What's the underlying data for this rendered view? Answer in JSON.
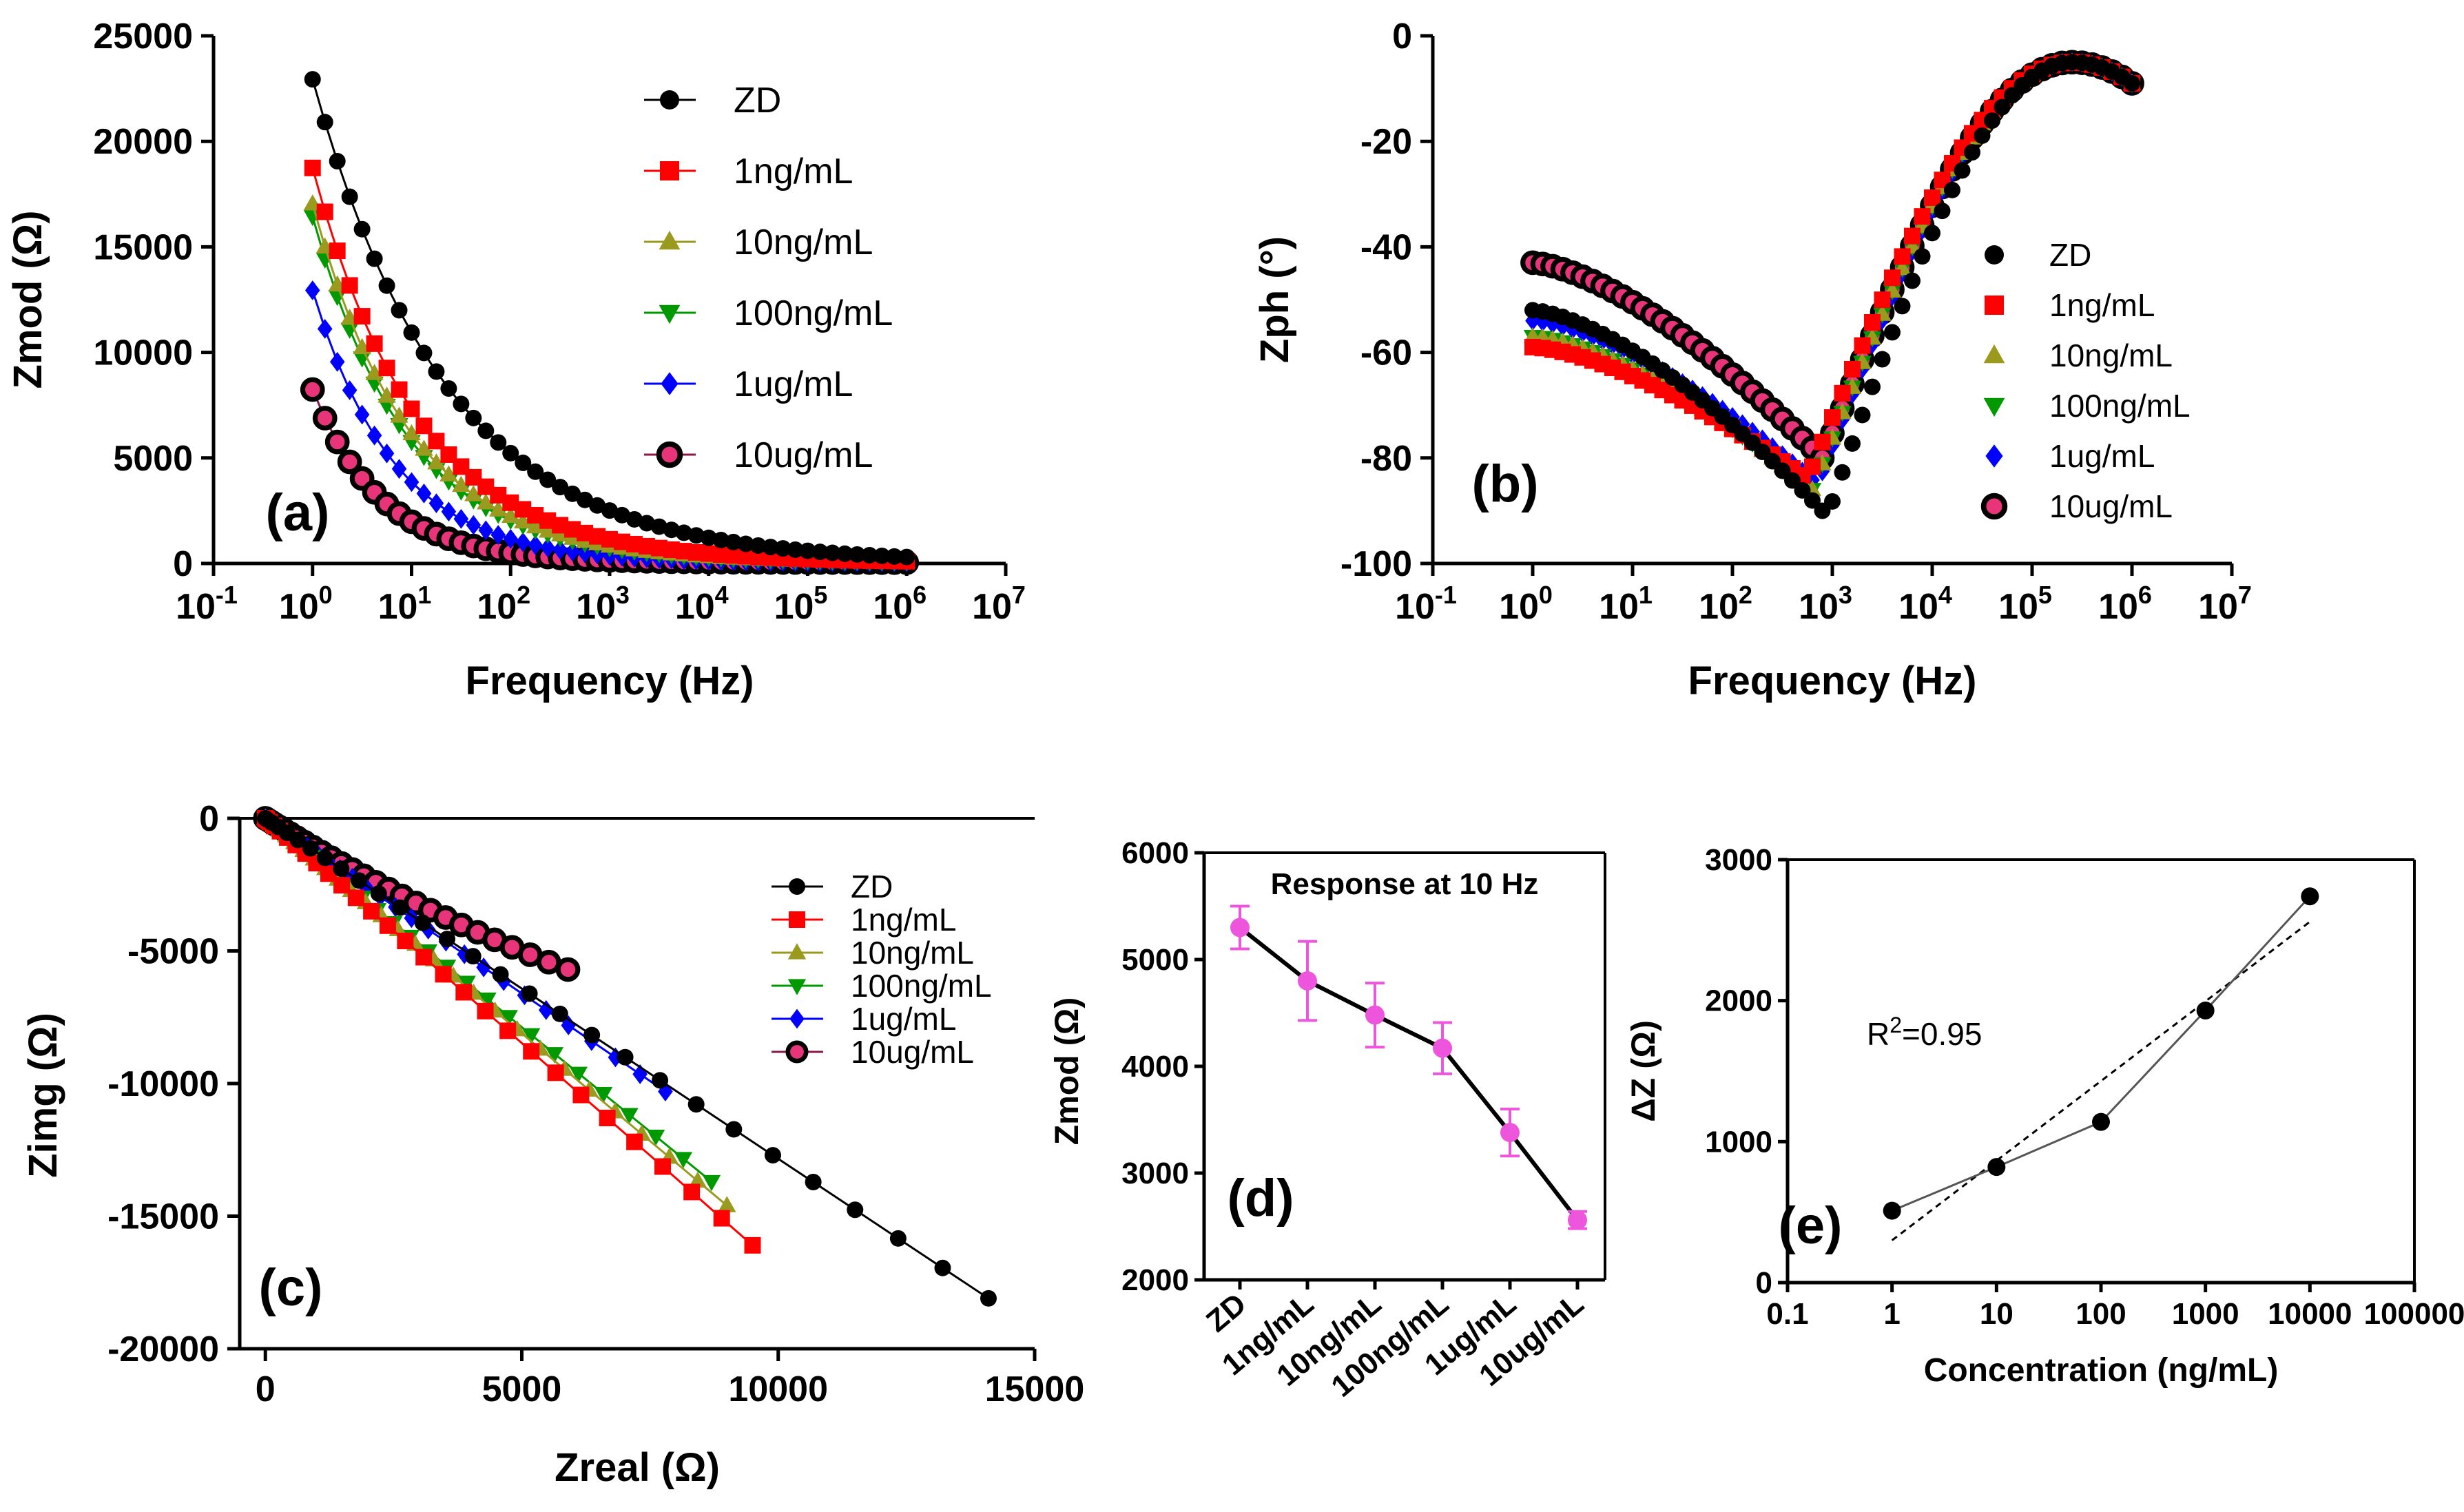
{
  "chart_data": [
    {
      "id": "a",
      "type": "scatter",
      "panel_label": "(a)",
      "title": "",
      "xlabel": "Frequency (Hz)",
      "ylabel": "Zmod (Ω)",
      "xscale": "log",
      "xlim_exp": [
        -1,
        7
      ],
      "x_ticks": [
        {
          "base": "10",
          "exp": "-1"
        },
        {
          "base": "10",
          "exp": "0"
        },
        {
          "base": "10",
          "exp": "1"
        },
        {
          "base": "10",
          "exp": "2"
        },
        {
          "base": "10",
          "exp": "3"
        },
        {
          "base": "10",
          "exp": "4"
        },
        {
          "base": "10",
          "exp": "5"
        },
        {
          "base": "10",
          "exp": "6"
        },
        {
          "base": "10",
          "exp": "7"
        }
      ],
      "ylim": [
        0,
        25000
      ],
      "y_ticks": [
        "0",
        "5000",
        "10000",
        "15000",
        "20000",
        "25000"
      ],
      "legend_position": "top-right",
      "series_model": "Zmod(f) ≈ A at 1 Hz decaying to ~0 above 1 kHz",
      "series": [
        {
          "name": "ZD",
          "color": "#000000",
          "marker": "circle",
          "value_at_1Hz": 22900
        },
        {
          "name": "1ng/mL",
          "color": "#ff0000",
          "marker": "square",
          "value_at_1Hz": 18700
        },
        {
          "name": "10ng/mL",
          "color": "#9a9a1e",
          "marker": "triangle-up",
          "value_at_1Hz": 17000
        },
        {
          "name": "100ng/mL",
          "color": "#009900",
          "marker": "triangle-down",
          "value_at_1Hz": 16400
        },
        {
          "name": "1ug/mL",
          "color": "#0000ff",
          "marker": "diamond",
          "value_at_1Hz": 12900
        },
        {
          "name": "10ug/mL",
          "color": "#8b1a4a",
          "marker": "ring",
          "value_at_1Hz": 8200
        }
      ]
    },
    {
      "id": "b",
      "type": "scatter",
      "panel_label": "(b)",
      "title": "",
      "xlabel": "Frequency (Hz)",
      "ylabel": "Zph (°)",
      "xscale": "log",
      "xlim_exp": [
        -1,
        7
      ],
      "x_ticks": [
        {
          "base": "10",
          "exp": "-1"
        },
        {
          "base": "10",
          "exp": "0"
        },
        {
          "base": "10",
          "exp": "1"
        },
        {
          "base": "10",
          "exp": "2"
        },
        {
          "base": "10",
          "exp": "3"
        },
        {
          "base": "10",
          "exp": "4"
        },
        {
          "base": "10",
          "exp": "5"
        },
        {
          "base": "10",
          "exp": "6"
        },
        {
          "base": "10",
          "exp": "7"
        }
      ],
      "ylim": [
        -100,
        0
      ],
      "y_ticks": [
        "-100",
        "-80",
        "-60",
        "-40",
        "-20",
        "0"
      ],
      "legend_position": "right",
      "series": [
        {
          "name": "ZD",
          "color": "#000000",
          "marker": "circle",
          "phase_at_1Hz": -52,
          "min_phase": -91,
          "min_at_log_f": 2.95
        },
        {
          "name": "1ng/mL",
          "color": "#ff0000",
          "marker": "square",
          "phase_at_1Hz": -59,
          "min_phase": -84,
          "min_at_log_f": 2.75
        },
        {
          "name": "10ng/mL",
          "color": "#9a9a1e",
          "marker": "triangle-up",
          "phase_at_1Hz": -57,
          "min_phase": -86,
          "min_at_log_f": 2.8
        },
        {
          "name": "100ng/mL",
          "color": "#009900",
          "marker": "triangle-down",
          "phase_at_1Hz": -57,
          "min_phase": -86,
          "min_at_log_f": 2.8
        },
        {
          "name": "1ug/mL",
          "color": "#0000ff",
          "marker": "diamond",
          "phase_at_1Hz": -54,
          "min_phase": -85,
          "min_at_log_f": 2.85
        },
        {
          "name": "10ug/mL",
          "color": "#8b1a4a",
          "marker": "ring",
          "phase_at_1Hz": -43,
          "min_phase": -80,
          "min_at_log_f": 2.9
        }
      ],
      "phase_max": -5,
      "phase_max_at_log_f": 5.4,
      "phase_at_1MHz": -9
    },
    {
      "id": "c",
      "type": "scatter",
      "panel_label": "(c)",
      "title": "",
      "xlabel": "Zreal (Ω)",
      "ylabel": "Zimg (Ω)",
      "xlim": [
        -500,
        15000
      ],
      "x_ticks": [
        "0",
        "5000",
        "10000",
        "15000"
      ],
      "ylim": [
        -20000,
        0
      ],
      "y_ticks": [
        "-20000",
        "-15000",
        "-10000",
        "-5000",
        "0"
      ],
      "legend_position": "right",
      "series": [
        {
          "name": "ZD",
          "color": "#000000",
          "marker": "circle",
          "end_point": [
            14100,
            -18100
          ]
        },
        {
          "name": "1ng/mL",
          "color": "#ff0000",
          "marker": "square",
          "end_point": [
            9500,
            -16100
          ]
        },
        {
          "name": "10ng/mL",
          "color": "#9a9a1e",
          "marker": "triangle-up",
          "end_point": [
            9000,
            -14600
          ]
        },
        {
          "name": "100ng/mL",
          "color": "#009900",
          "marker": "triangle-down",
          "end_point": [
            8700,
            -13700
          ]
        },
        {
          "name": "1ug/mL",
          "color": "#0000ff",
          "marker": "diamond",
          "end_point": [
            7800,
            -10300
          ]
        },
        {
          "name": "10ug/mL",
          "color": "#8b1a4a",
          "marker": "ring",
          "end_point": [
            5900,
            -5700
          ]
        }
      ]
    },
    {
      "id": "d",
      "type": "line",
      "panel_label": "(d)",
      "title": "Response at 10 Hz",
      "xlabel": "",
      "ylabel": "Zmod (Ω)",
      "categories": [
        "ZD",
        "1ng/mL",
        "10ng/mL",
        "100ng/mL",
        "1ug/mL",
        "10ug/mL"
      ],
      "values": [
        5300,
        4800,
        4480,
        4170,
        3380,
        2560
      ],
      "errors": [
        200,
        370,
        300,
        240,
        220,
        80
      ],
      "ylim": [
        2000,
        6000
      ],
      "y_ticks": [
        "2000",
        "3000",
        "4000",
        "5000",
        "6000"
      ],
      "color": "#ee55dd"
    },
    {
      "id": "e",
      "type": "scatter",
      "panel_label": "(e)",
      "title": "",
      "xlabel": "Concentration (ng/mL)",
      "ylabel": "ΔZ (Ω)",
      "xscale": "log",
      "x_ticks": [
        "0.1",
        "1",
        "10",
        "100",
        "1000",
        "10000",
        "100000"
      ],
      "x": [
        1,
        10,
        100,
        1000,
        10000
      ],
      "values": [
        510,
        820,
        1140,
        1930,
        2740
      ],
      "ylim": [
        0,
        3000
      ],
      "y_ticks": [
        "0",
        "1000",
        "2000",
        "3000"
      ],
      "fit_line": {
        "from": [
          1,
          300
        ],
        "to": [
          10000,
          2560
        ],
        "style": "dashed"
      },
      "annotation": {
        "text": "R",
        "sup": "2",
        "rest": "=0.95"
      }
    }
  ]
}
